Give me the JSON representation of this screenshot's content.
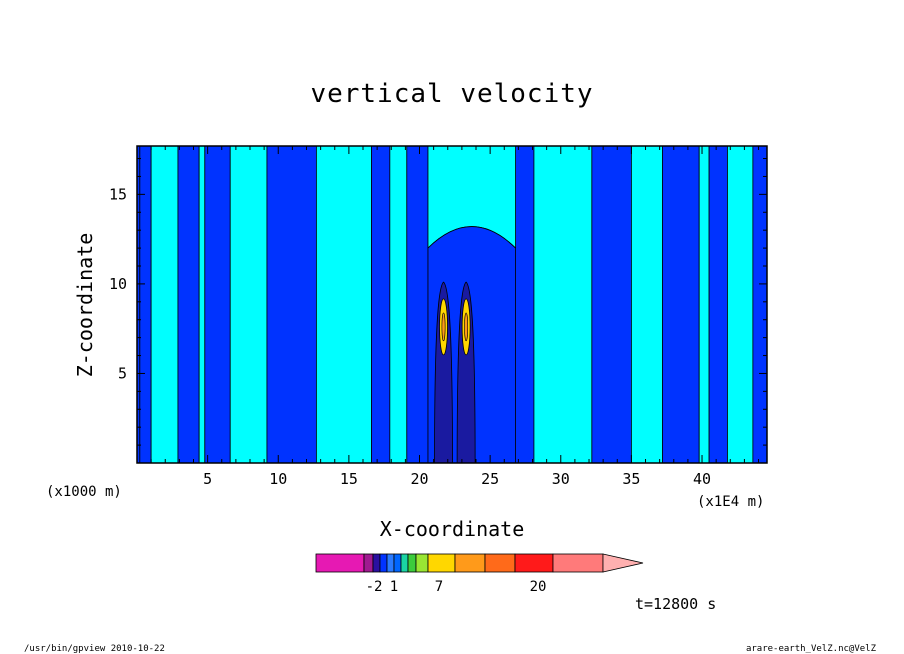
{
  "chart_data": {
    "type": "heatmap",
    "title": "vertical velocity",
    "xlabel": "X-coordinate",
    "ylabel": "Z-coordinate",
    "x_unit_note": "(x1000 m)",
    "x_unit_note2": "(x1E4 m)",
    "xlim": [
      0,
      44.6
    ],
    "ylim": [
      0,
      17.7
    ],
    "xticks": [
      5,
      10,
      15,
      20,
      25,
      30,
      35,
      40
    ],
    "xtick_labels": [
      "5",
      "10",
      "15",
      "20",
      "25",
      "30",
      "35",
      "40"
    ],
    "yticks": [
      5,
      10,
      15
    ],
    "ytick_labels": [
      "5",
      "10",
      "15"
    ],
    "background_level_color": "#00ffff",
    "field_bands": [
      {
        "x0": 0.0,
        "x1": 0.2,
        "level": "negative"
      },
      {
        "x0": 0.2,
        "x1": 1.0,
        "level": "negative"
      },
      {
        "x0": 1.0,
        "x1": 2.9,
        "level": "positive"
      },
      {
        "x0": 2.9,
        "x1": 4.4,
        "level": "negative"
      },
      {
        "x0": 4.4,
        "x1": 4.8,
        "level": "positive"
      },
      {
        "x0": 4.8,
        "x1": 6.6,
        "level": "negative"
      },
      {
        "x0": 6.6,
        "x1": 9.2,
        "level": "positive"
      },
      {
        "x0": 9.2,
        "x1": 12.7,
        "level": "negative"
      },
      {
        "x0": 12.7,
        "x1": 16.6,
        "level": "positive"
      },
      {
        "x0": 16.6,
        "x1": 17.9,
        "level": "negative"
      },
      {
        "x0": 17.9,
        "x1": 19.1,
        "level": "positive"
      },
      {
        "x0": 19.1,
        "x1": 20.6,
        "level": "negative"
      },
      {
        "x0": 26.8,
        "x1": 28.1,
        "level": "negative"
      },
      {
        "x0": 28.1,
        "x1": 32.2,
        "level": "positive"
      },
      {
        "x0": 32.2,
        "x1": 35.0,
        "level": "negative"
      },
      {
        "x0": 35.0,
        "x1": 37.2,
        "level": "positive"
      },
      {
        "x0": 37.2,
        "x1": 39.8,
        "level": "negative"
      },
      {
        "x0": 39.8,
        "x1": 40.5,
        "level": "positive"
      },
      {
        "x0": 40.5,
        "x1": 41.8,
        "level": "negative"
      },
      {
        "x0": 41.8,
        "x1": 43.6,
        "level": "positive"
      },
      {
        "x0": 43.6,
        "x1": 44.6,
        "level": "negative"
      }
    ],
    "updrafts": [
      {
        "x": 21.7,
        "z_top": 10.1,
        "peak_level": 7
      },
      {
        "x": 23.3,
        "z_top": 10.1,
        "peak_level": 7
      }
    ],
    "colorbar": {
      "colors": [
        "#e619b3",
        "#a01a90",
        "#2a10a0",
        "#0033ff",
        "#2a7bff",
        "#0066ff",
        "#1ad4a4",
        "#3ccc3c",
        "#99e633",
        "#ffd700",
        "#ff9a1a",
        "#ff6a1a",
        "#ff1a1a",
        "#ff7a7a",
        "#ffb0b0"
      ],
      "tick_labels": [
        "-2",
        "1",
        "7",
        "20"
      ]
    },
    "time_label": "t=12800 s"
  },
  "footer": {
    "left": "/usr/bin/gpview  2010-10-22",
    "right": "arare-earth_VelZ.nc@VelZ"
  }
}
